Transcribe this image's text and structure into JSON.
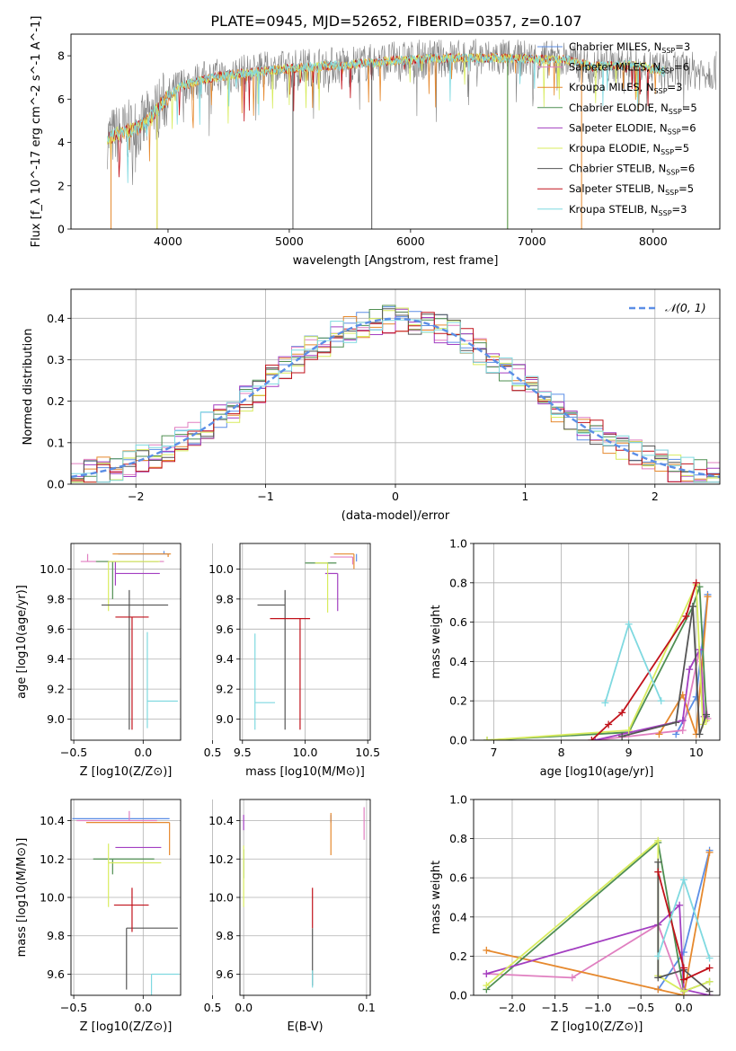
{
  "figure": {
    "title": "PLATE=0945, MJD=52652, FIBERID=0357, z=0.107"
  },
  "series_colors": {
    "Chabrier MILES": "#5b8ee6",
    "Salpeter MILES": "#e07fc0",
    "Kroupa MILES": "#e6892e",
    "Chabrier ELODIE": "#4f8f52",
    "Salpeter ELODIE": "#a33fc1",
    "Kroupa ELODIE": "#d8ec5e",
    "Chabrier STELIB": "#555555",
    "Salpeter STELIB": "#c1121b",
    "Kroupa STELIB": "#7fd9e0"
  },
  "chart_data": [
    {
      "id": "spectrum",
      "type": "line",
      "title": "PLATE=0945, MJD=52652, FIBERID=0357, z=0.107",
      "xlabel": "wavelength [Angstrom, rest frame]",
      "ylabel": "Flux [f_λ 10^-17 erg cm^-2 s^-1 A^-1]",
      "xlim": [
        3200,
        8550
      ],
      "ylim": [
        0,
        9
      ],
      "xticks": [
        "4000",
        "5000",
        "6000",
        "7000",
        "8000"
      ],
      "yticks": [
        "0",
        "2",
        "4",
        "6",
        "8"
      ],
      "grid": false,
      "legend_position": "right",
      "legend": [
        {
          "name": "Chabrier MILES",
          "nssp": "3"
        },
        {
          "name": "Salpeter MILES",
          "nssp": "6"
        },
        {
          "name": "Kroupa MILES",
          "nssp": "3"
        },
        {
          "name": "Chabrier ELODIE",
          "nssp": "5"
        },
        {
          "name": "Salpeter ELODIE",
          "nssp": "6"
        },
        {
          "name": "Kroupa ELODIE",
          "nssp": "5"
        },
        {
          "name": "Chabrier STELIB",
          "nssp": "6"
        },
        {
          "name": "Salpeter STELIB",
          "nssp": "5"
        },
        {
          "name": "Kroupa STELIB",
          "nssp": "3"
        }
      ],
      "continuum": {
        "x": [
          3500,
          3650,
          3800,
          3950,
          4100,
          4300,
          4500,
          4800,
          5000,
          5200,
          5500,
          5800,
          6100,
          6400,
          6700,
          7000,
          7300,
          7500,
          7800,
          8100
        ],
        "y": [
          4.2,
          4.5,
          4.8,
          5.8,
          6.6,
          6.9,
          7.1,
          7.3,
          7.4,
          7.5,
          7.6,
          7.75,
          7.85,
          7.9,
          7.9,
          7.85,
          7.8,
          7.5,
          7.6,
          7.3
        ]
      },
      "spikes": [
        {
          "series": "Kroupa MILES",
          "x": [
            3530,
            3910,
            7410
          ]
        },
        {
          "series": "Kroupa ELODIE",
          "x": [
            3910,
            6800
          ]
        },
        {
          "series": "Chabrier ELODIE",
          "x": [
            6800
          ]
        },
        {
          "series": "Chabrier STELIB",
          "x": [
            5030,
            5680
          ]
        }
      ]
    },
    {
      "id": "residuals",
      "type": "histogram",
      "xlabel": "(data-model)/error",
      "ylabel": "Normed distribution",
      "xlim": [
        -2.5,
        2.5
      ],
      "ylim": [
        0,
        0.47
      ],
      "xticks": [
        "−2",
        "−1",
        "0",
        "1",
        "2"
      ],
      "yticks": [
        "0.0",
        "0.1",
        "0.2",
        "0.3",
        "0.4"
      ],
      "grid": true,
      "legend_position": "top-right",
      "legend": [
        "𝒩(0, 1)"
      ],
      "reference_curve": {
        "name": "𝒩(0, 1)",
        "mean": 0,
        "sigma": 1
      },
      "bin_width": 0.1,
      "bin_start": -2.5
    },
    {
      "id": "z-age",
      "type": "scatter",
      "xlabel": "Z [log10(Z/Z⊙)]",
      "ylabel": "age  [log10(age/yr)]",
      "xlim": [
        -0.52,
        0.27
      ],
      "ylim": [
        8.86,
        10.17
      ],
      "xticks": [
        "−0.5",
        "0.0",
        "0.5"
      ],
      "yticks": [
        "9.0",
        "9.2",
        "9.4",
        "9.6",
        "9.8",
        "10.0"
      ],
      "grid": true,
      "points": [
        {
          "series": "Chabrier MILES",
          "x": 0.15,
          "y": 10.1,
          "xerr": [
            0.33,
            0.04
          ],
          "yerr": [
            0.0,
            0.02
          ]
        },
        {
          "series": "Salpeter MILES",
          "x": -0.4,
          "y": 10.05,
          "xerr": [
            0.05,
            0.55
          ],
          "yerr": [
            0.0,
            0.05
          ]
        },
        {
          "series": "Kroupa MILES",
          "x": 0.18,
          "y": 10.1,
          "xerr": [
            0.4,
            0.02
          ],
          "yerr": [
            0.02,
            0.0
          ]
        },
        {
          "series": "Chabrier ELODIE",
          "x": -0.22,
          "y": 10.05,
          "xerr": [
            0.12,
            0.33
          ],
          "yerr": [
            0.25,
            0.0
          ]
        },
        {
          "series": "Salpeter ELODIE",
          "x": -0.2,
          "y": 9.97,
          "xerr": [
            0.0,
            0.32
          ],
          "yerr": [
            0.08,
            0.08
          ]
        },
        {
          "series": "Kroupa ELODIE",
          "x": -0.25,
          "y": 10.05,
          "xerr": [
            0.0,
            0.37
          ],
          "yerr": [
            0.33,
            0.0
          ]
        },
        {
          "series": "Chabrier STELIB",
          "x": -0.1,
          "y": 9.76,
          "xerr": [
            0.2,
            0.28
          ],
          "yerr": [
            0.83,
            0.1
          ]
        },
        {
          "series": "Salpeter STELIB",
          "x": -0.08,
          "y": 9.68,
          "xerr": [
            0.12,
            0.12
          ],
          "yerr": [
            0.75,
            0.0
          ]
        },
        {
          "series": "Kroupa STELIB",
          "x": 0.03,
          "y": 9.12,
          "xerr": [
            0.0,
            0.22
          ],
          "yerr": [
            0.18,
            0.46
          ]
        }
      ]
    },
    {
      "id": "mass-age",
      "type": "scatter",
      "xlabel": "mass [log10(M/M⊙)]",
      "xlim": [
        9.48,
        10.52
      ],
      "ylim": [
        8.86,
        10.17
      ],
      "xticks": [
        "9.5",
        "10.0",
        "10.5"
      ],
      "yticks": [
        "9.0",
        "9.2",
        "9.4",
        "9.6",
        "9.8",
        "10.0"
      ],
      "grid": true,
      "points": [
        {
          "series": "Chabrier MILES",
          "x": 10.41,
          "y": 10.1,
          "xerr": [
            0.0,
            0.0
          ],
          "yerr": [
            0.05,
            0.0
          ]
        },
        {
          "series": "Salpeter MILES",
          "x": 10.38,
          "y": 10.08,
          "xerr": [
            0.18,
            0.0
          ],
          "yerr": [
            0.05,
            0.0
          ]
        },
        {
          "series": "Kroupa MILES",
          "x": 10.39,
          "y": 10.1,
          "xerr": [
            0.16,
            0.0
          ],
          "yerr": [
            0.1,
            0.0
          ]
        },
        {
          "series": "Chabrier ELODIE",
          "x": 10.2,
          "y": 10.04,
          "xerr": [
            0.2,
            0.05
          ],
          "yerr": [
            0.0,
            0.0
          ]
        },
        {
          "series": "Salpeter ELODIE",
          "x": 10.26,
          "y": 9.97,
          "xerr": [
            0.1,
            0.0
          ],
          "yerr": [
            0.25,
            0.0
          ]
        },
        {
          "series": "Kroupa ELODIE",
          "x": 10.18,
          "y": 10.04,
          "xerr": [
            0.1,
            0.0
          ],
          "yerr": [
            0.33,
            0.0
          ]
        },
        {
          "series": "Chabrier STELIB",
          "x": 9.84,
          "y": 9.76,
          "xerr": [
            0.22,
            0.0
          ],
          "yerr": [
            0.83,
            0.1
          ]
        },
        {
          "series": "Salpeter STELIB",
          "x": 9.96,
          "y": 9.67,
          "xerr": [
            0.24,
            0.08
          ],
          "yerr": [
            0.74,
            0.0
          ]
        },
        {
          "series": "Kroupa STELIB",
          "x": 9.6,
          "y": 9.11,
          "xerr": [
            0.0,
            0.16
          ],
          "yerr": [
            0.18,
            0.46
          ]
        }
      ]
    },
    {
      "id": "age-weight",
      "type": "line",
      "xlabel": "age  [log10(age/yr)]",
      "ylabel": "mass weight",
      "xlim": [
        6.7,
        10.35
      ],
      "ylim": [
        0,
        1.0
      ],
      "xticks": [
        "7",
        "8",
        "9",
        "10"
      ],
      "yticks": [
        "0.0",
        "0.2",
        "0.4",
        "0.6",
        "0.8",
        "1.0"
      ],
      "grid": true,
      "series": [
        {
          "name": "Chabrier MILES",
          "x": [
            9.7,
            10.0,
            10.17
          ],
          "y": [
            0.03,
            0.22,
            0.74
          ]
        },
        {
          "name": "Salpeter MILES",
          "x": [
            8.5,
            9.8,
            10.05,
            10.17
          ],
          "y": [
            0.0,
            0.05,
            0.46,
            0.11
          ]
        },
        {
          "name": "Kroupa MILES",
          "x": [
            9.45,
            9.8,
            10.0,
            10.17
          ],
          "y": [
            0.03,
            0.23,
            0.03,
            0.73
          ]
        },
        {
          "name": "Chabrier ELODIE",
          "x": [
            6.9,
            9.0,
            9.95,
            10.05,
            10.15
          ],
          "y": [
            0.0,
            0.04,
            0.68,
            0.78,
            0.12
          ]
        },
        {
          "name": "Salpeter ELODIE",
          "x": [
            8.5,
            9.8,
            9.9,
            10.05,
            10.12
          ],
          "y": [
            0.0,
            0.1,
            0.36,
            0.46,
            0.12
          ]
        },
        {
          "name": "Kroupa ELODIE",
          "x": [
            6.9,
            9.0,
            10.0,
            10.1,
            10.15
          ],
          "y": [
            0.0,
            0.05,
            0.79,
            0.08,
            0.1
          ]
        },
        {
          "name": "Chabrier STELIB",
          "x": [
            8.9,
            9.7,
            9.95,
            10.05,
            10.15
          ],
          "y": [
            0.02,
            0.09,
            0.68,
            0.03,
            0.13
          ]
        },
        {
          "name": "Salpeter STELIB",
          "x": [
            8.45,
            8.7,
            8.9,
            9.85,
            10.0
          ],
          "y": [
            0.0,
            0.08,
            0.14,
            0.63,
            0.8
          ]
        },
        {
          "name": "Kroupa STELIB",
          "x": [
            8.65,
            9.0,
            9.48
          ],
          "y": [
            0.19,
            0.59,
            0.2
          ]
        }
      ]
    },
    {
      "id": "z-mass",
      "type": "scatter",
      "xlabel": "Z [log10(Z/Z⊙)]",
      "ylabel": "mass [log10(M/M⊙)]",
      "xlim": [
        -0.52,
        0.27
      ],
      "ylim": [
        9.49,
        10.51
      ],
      "xticks": [
        "−0.5",
        "0.0",
        "0.5"
      ],
      "yticks": [
        "9.6",
        "9.8",
        "10.0",
        "10.2",
        "10.4"
      ],
      "grid": true,
      "points": [
        {
          "series": "Chabrier MILES",
          "x": 0.19,
          "y": 10.41,
          "xerr": [
            0.7,
            0.0
          ],
          "yerr": [
            0.0,
            0.0
          ]
        },
        {
          "series": "Salpeter MILES",
          "x": -0.1,
          "y": 10.4,
          "xerr": [
            0.38,
            0.2
          ],
          "yerr": [
            0.0,
            0.05
          ]
        },
        {
          "series": "Kroupa MILES",
          "x": 0.19,
          "y": 10.39,
          "xerr": [
            0.6,
            0.0
          ],
          "yerr": [
            0.17,
            0.0
          ]
        },
        {
          "series": "Chabrier ELODIE",
          "x": -0.22,
          "y": 10.2,
          "xerr": [
            0.14,
            0.3
          ],
          "yerr": [
            0.08,
            0.0
          ]
        },
        {
          "series": "Salpeter ELODIE",
          "x": -0.2,
          "y": 10.26,
          "xerr": [
            0.0,
            0.33
          ],
          "yerr": [
            0.0,
            0.0
          ]
        },
        {
          "series": "Kroupa ELODIE",
          "x": -0.25,
          "y": 10.18,
          "xerr": [
            0.0,
            0.38
          ],
          "yerr": [
            0.23,
            0.1
          ]
        },
        {
          "series": "Chabrier STELIB",
          "x": -0.12,
          "y": 9.84,
          "xerr": [
            0.0,
            0.37
          ],
          "yerr": [
            0.32,
            0.0
          ]
        },
        {
          "series": "Salpeter STELIB",
          "x": -0.08,
          "y": 9.96,
          "xerr": [
            0.13,
            0.12
          ],
          "yerr": [
            0.14,
            0.09
          ]
        },
        {
          "series": "Kroupa STELIB",
          "x": 0.06,
          "y": 9.6,
          "xerr": [
            0.0,
            0.2
          ],
          "yerr": [
            0.11,
            0.0
          ]
        }
      ]
    },
    {
      "id": "ebv-mass",
      "type": "scatter",
      "xlabel": "E(B-V)",
      "xlim": [
        -0.003,
        0.103
      ],
      "ylim": [
        9.49,
        10.51
      ],
      "xticks": [
        "0.0",
        "0.1"
      ],
      "yticks": [
        "9.6",
        "9.8",
        "10.0",
        "10.2",
        "10.4"
      ],
      "grid": true,
      "points": [
        {
          "series": "Chabrier MILES",
          "x": 0.071,
          "y": 10.41,
          "xerr": [
            0,
            0
          ],
          "yerr": [
            0.02,
            0.02
          ]
        },
        {
          "series": "Salpeter MILES",
          "x": 0.098,
          "y": 10.4,
          "xerr": [
            0,
            0
          ],
          "yerr": [
            0.1,
            0.07
          ]
        },
        {
          "series": "Kroupa MILES",
          "x": 0.071,
          "y": 10.39,
          "xerr": [
            0,
            0
          ],
          "yerr": [
            0.17,
            0.05
          ]
        },
        {
          "series": "Chabrier ELODIE",
          "x": 0.0,
          "y": 10.2,
          "xerr": [
            0,
            0
          ],
          "yerr": [
            0.1,
            0.05
          ]
        },
        {
          "series": "Salpeter ELODIE",
          "x": 0.0,
          "y": 10.38,
          "xerr": [
            0,
            0
          ],
          "yerr": [
            0.03,
            0.05
          ]
        },
        {
          "series": "Kroupa ELODIE",
          "x": 0.0,
          "y": 10.15,
          "xerr": [
            0,
            0
          ],
          "yerr": [
            0.2,
            0.12
          ]
        },
        {
          "series": "Chabrier STELIB",
          "x": 0.056,
          "y": 9.84,
          "xerr": [
            0,
            0
          ],
          "yerr": [
            0.3,
            0.0
          ]
        },
        {
          "series": "Salpeter STELIB",
          "x": 0.056,
          "y": 9.96,
          "xerr": [
            0,
            0
          ],
          "yerr": [
            0.12,
            0.09
          ]
        },
        {
          "series": "Kroupa STELIB",
          "x": 0.056,
          "y": 9.62,
          "xerr": [
            0,
            0
          ],
          "yerr": [
            0.09,
            0.0
          ]
        }
      ]
    },
    {
      "id": "z-weight",
      "type": "line",
      "xlabel": "Z [log10(Z/Z⊙)]",
      "ylabel": "mass weight",
      "xlim": [
        -2.45,
        0.42
      ],
      "ylim": [
        0,
        1.0
      ],
      "xticks": [
        "−2.0",
        "−1.5",
        "−1.0",
        "−0.5",
        "0.0"
      ],
      "yticks": [
        "0.0",
        "0.2",
        "0.4",
        "0.6",
        "0.8",
        "1.0"
      ],
      "grid": true,
      "series": [
        {
          "name": "Chabrier MILES",
          "x": [
            -0.3,
            0.0,
            0.3
          ],
          "y": [
            0.03,
            0.22,
            0.74
          ]
        },
        {
          "name": "Salpeter MILES",
          "x": [
            -2.3,
            -1.3,
            -0.3,
            0.0,
            0.3
          ],
          "y": [
            0.11,
            0.09,
            0.36,
            0.0,
            0.0
          ]
        },
        {
          "name": "Kroupa MILES",
          "x": [
            -2.3,
            -0.3,
            0.0,
            0.3
          ],
          "y": [
            0.23,
            0.03,
            0.0,
            0.73
          ]
        },
        {
          "name": "Chabrier ELODIE",
          "x": [
            -2.3,
            -0.3,
            0.0,
            0.3
          ],
          "y": [
            0.03,
            0.78,
            0.02,
            0.07
          ]
        },
        {
          "name": "Salpeter ELODIE",
          "x": [
            -2.3,
            -0.3,
            -0.05,
            0.0,
            0.3
          ],
          "y": [
            0.11,
            0.36,
            0.46,
            0.03,
            0.0
          ]
        },
        {
          "name": "Kroupa ELODIE",
          "x": [
            -2.3,
            -0.3,
            -0.3,
            0.0,
            0.3
          ],
          "y": [
            0.05,
            0.79,
            0.1,
            0.02,
            0.07
          ]
        },
        {
          "name": "Chabrier STELIB",
          "x": [
            -0.3,
            -0.3,
            0.0,
            0.3
          ],
          "y": [
            0.68,
            0.09,
            0.13,
            0.02
          ]
        },
        {
          "name": "Salpeter STELIB",
          "x": [
            -0.3,
            0.0,
            0.0,
            0.3
          ],
          "y": [
            0.63,
            0.14,
            0.08,
            0.14
          ]
        },
        {
          "name": "Kroupa STELIB",
          "x": [
            -0.3,
            0.0,
            0.3
          ],
          "y": [
            0.2,
            0.59,
            0.19
          ]
        }
      ]
    }
  ]
}
